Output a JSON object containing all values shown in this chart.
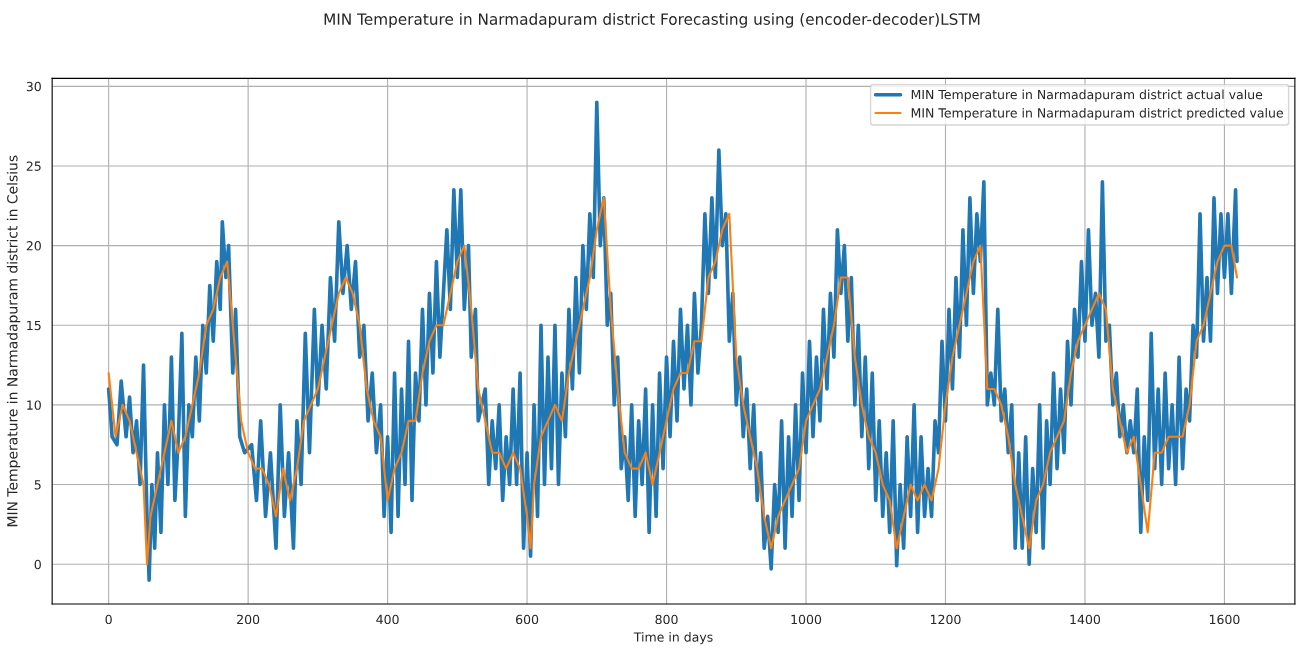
{
  "chart_data": {
    "type": "line",
    "title": "MIN Temperature in Narmadapuram district Forecasting using (encoder-decoder)LSTM",
    "xlabel": "Time in days",
    "ylabel": "MIN Temperature in Narmadapuram district in Celsius",
    "xlim": [
      -81,
      1701
    ],
    "ylim": [
      -2.5,
      30.5
    ],
    "xticks": [
      0,
      200,
      400,
      600,
      800,
      1000,
      1200,
      1400,
      1600
    ],
    "yticks": [
      0,
      5,
      10,
      15,
      20,
      25,
      30
    ],
    "grid": true,
    "legend": "top right",
    "series": [
      {
        "name": "MIN Temperature in Narmadapuram district actual value",
        "color": "#1f77b4",
        "x": [
          0,
          5,
          12,
          18,
          25,
          30,
          35,
          40,
          45,
          50,
          55,
          58,
          62,
          66,
          70,
          75,
          80,
          85,
          90,
          95,
          100,
          105,
          110,
          115,
          120,
          125,
          130,
          135,
          140,
          145,
          150,
          155,
          160,
          163,
          168,
          172,
          178,
          182,
          188,
          195,
          205,
          212,
          218,
          225,
          232,
          240,
          246,
          252,
          258,
          265,
          270,
          276,
          282,
          288,
          295,
          300,
          306,
          312,
          318,
          324,
          330,
          336,
          342,
          348,
          354,
          360,
          366,
          372,
          378,
          384,
          390,
          395,
          400,
          405,
          410,
          415,
          420,
          425,
          430,
          435,
          440,
          445,
          450,
          455,
          460,
          465,
          470,
          475,
          480,
          485,
          490,
          495,
          500,
          505,
          510,
          516,
          520,
          526,
          530,
          540,
          545,
          550,
          555,
          560,
          565,
          570,
          575,
          580,
          585,
          590,
          595,
          600,
          605,
          610,
          615,
          620,
          625,
          630,
          635,
          640,
          645,
          650,
          655,
          660,
          665,
          670,
          675,
          680,
          685,
          690,
          695,
          700,
          705,
          710,
          715,
          720,
          725,
          730,
          735,
          740,
          745,
          750,
          755,
          760,
          765,
          770,
          775,
          780,
          785,
          790,
          795,
          800,
          805,
          810,
          815,
          820,
          825,
          830,
          835,
          840,
          845,
          850,
          855,
          860,
          865,
          870,
          875,
          880,
          885,
          890,
          895,
          900,
          905,
          910,
          915,
          920,
          925,
          930,
          935,
          940,
          945,
          950,
          955,
          960,
          965,
          970,
          975,
          980,
          985,
          990,
          995,
          1000,
          1005,
          1010,
          1015,
          1020,
          1025,
          1030,
          1035,
          1040,
          1045,
          1050,
          1055,
          1060,
          1065,
          1070,
          1075,
          1080,
          1085,
          1090,
          1095,
          1100,
          1105,
          1110,
          1115,
          1120,
          1125,
          1130,
          1135,
          1140,
          1145,
          1150,
          1155,
          1160,
          1165,
          1170,
          1175,
          1180,
          1185,
          1190,
          1195,
          1200,
          1205,
          1210,
          1215,
          1220,
          1225,
          1230,
          1235,
          1240,
          1245,
          1250,
          1255,
          1260,
          1265,
          1270,
          1275,
          1280,
          1285,
          1290,
          1295,
          1300,
          1305,
          1310,
          1315,
          1320,
          1325,
          1330,
          1335,
          1340,
          1345,
          1350,
          1355,
          1360,
          1365,
          1370,
          1375,
          1380,
          1385,
          1390,
          1395,
          1400,
          1405,
          1410,
          1415,
          1420,
          1425,
          1430,
          1435,
          1440,
          1445,
          1450,
          1455,
          1460,
          1465,
          1470,
          1475,
          1480,
          1485,
          1490,
          1495,
          1500,
          1505,
          1510,
          1515,
          1520,
          1525,
          1530,
          1535,
          1540,
          1545,
          1550,
          1555,
          1560,
          1565,
          1570,
          1575,
          1580,
          1585,
          1590,
          1595,
          1600,
          1605,
          1610,
          1616,
          1618
        ],
        "values": [
          11,
          8,
          7.5,
          11.5,
          8,
          10.5,
          7,
          9,
          5,
          12.5,
          3,
          -1,
          5,
          1,
          7,
          2,
          10,
          5,
          13,
          4,
          8,
          14.5,
          3,
          10,
          8,
          13,
          9,
          15,
          12,
          17.5,
          14,
          19,
          16,
          21.5,
          18,
          20,
          12,
          16,
          8,
          7,
          7.5,
          4,
          9,
          3,
          7,
          1,
          10,
          3,
          7,
          1,
          9,
          5,
          14.5,
          7,
          16,
          10,
          15,
          11,
          18,
          14,
          21.5,
          17,
          20,
          16,
          19,
          13,
          15,
          9,
          12,
          7,
          10,
          3,
          8,
          2,
          12,
          3,
          11,
          5,
          14,
          4,
          12,
          9,
          16,
          10,
          17,
          12,
          19,
          13,
          17,
          21,
          16,
          23.5,
          18,
          23.5,
          16,
          20,
          13,
          16,
          9,
          11,
          5,
          9,
          6,
          10,
          4,
          8,
          5,
          11,
          5,
          12,
          1,
          7,
          0.5,
          10,
          3,
          15,
          5,
          13,
          6,
          15,
          5,
          12,
          8,
          16,
          11,
          18,
          12,
          20,
          16,
          22,
          18,
          29,
          20,
          23,
          15,
          17,
          10,
          13,
          6,
          8,
          4,
          10,
          3,
          9,
          5,
          11,
          2,
          10,
          3,
          12,
          6,
          13,
          8,
          14,
          9,
          16,
          11,
          15,
          10,
          17,
          12,
          15,
          22,
          17,
          23,
          18,
          26,
          20,
          22,
          14,
          17,
          10,
          13,
          8,
          11,
          6,
          10,
          4,
          7,
          1,
          3,
          -0.3,
          5,
          2,
          9,
          1,
          8,
          3,
          10,
          4,
          12,
          7,
          14,
          8,
          13,
          9,
          16,
          11,
          17,
          13,
          21,
          17,
          20,
          14,
          18,
          10,
          15,
          8,
          13,
          6,
          12,
          4,
          9,
          3,
          7,
          2,
          9,
          -0.1,
          5,
          1,
          8,
          3,
          10,
          2,
          8,
          3,
          6,
          3,
          9,
          7,
          14,
          9,
          16,
          11,
          18,
          13,
          21,
          15,
          23,
          17,
          22,
          19,
          24,
          10,
          12,
          10,
          16,
          9,
          11,
          7,
          10,
          1,
          7,
          1,
          8,
          0,
          6,
          2,
          10,
          1,
          9,
          5,
          12,
          6,
          11,
          7,
          14,
          10,
          16,
          13,
          19,
          14,
          21,
          15,
          17,
          13,
          24,
          14,
          15,
          10,
          12,
          8,
          10,
          7,
          9,
          7,
          11,
          2,
          8,
          4,
          14.5,
          6,
          11,
          5,
          12,
          6,
          10,
          5,
          13,
          6,
          11,
          9,
          15,
          13,
          22,
          14,
          18,
          14,
          23,
          17,
          22,
          18,
          22,
          17,
          23.5,
          19
        ]
      },
      {
        "name": "MIN Temperature in Narmadapuram district predicted value",
        "color": "#ff7f0e",
        "x": [
          0,
          10,
          20,
          30,
          40,
          50,
          55,
          60,
          70,
          80,
          90,
          100,
          110,
          120,
          130,
          140,
          150,
          160,
          170,
          180,
          190,
          200,
          210,
          220,
          230,
          240,
          250,
          260,
          270,
          280,
          290,
          300,
          310,
          320,
          330,
          340,
          350,
          360,
          370,
          380,
          390,
          400,
          410,
          420,
          430,
          440,
          450,
          460,
          470,
          480,
          490,
          500,
          510,
          520,
          530,
          540,
          550,
          560,
          570,
          580,
          590,
          600,
          605,
          610,
          620,
          630,
          640,
          650,
          660,
          670,
          680,
          690,
          700,
          710,
          720,
          730,
          740,
          750,
          760,
          770,
          780,
          790,
          800,
          810,
          820,
          830,
          840,
          850,
          860,
          870,
          880,
          890,
          900,
          910,
          920,
          930,
          940,
          950,
          960,
          970,
          980,
          990,
          1000,
          1010,
          1020,
          1030,
          1040,
          1050,
          1060,
          1070,
          1080,
          1090,
          1100,
          1110,
          1120,
          1130,
          1140,
          1150,
          1160,
          1170,
          1180,
          1190,
          1200,
          1210,
          1220,
          1230,
          1240,
          1250,
          1260,
          1270,
          1280,
          1290,
          1300,
          1310,
          1320,
          1330,
          1340,
          1350,
          1360,
          1370,
          1380,
          1390,
          1400,
          1410,
          1420,
          1430,
          1440,
          1450,
          1460,
          1470,
          1480,
          1490,
          1500,
          1510,
          1520,
          1530,
          1540,
          1550,
          1560,
          1570,
          1580,
          1590,
          1600,
          1610,
          1618
        ],
        "values": [
          12,
          8,
          10,
          9,
          7,
          5,
          0,
          3,
          5,
          7,
          9,
          7,
          8,
          10,
          12,
          15,
          16,
          18,
          19,
          14,
          9,
          7,
          6,
          6,
          5,
          3,
          6,
          4,
          6,
          9,
          10,
          11,
          13,
          15,
          17,
          18,
          17,
          15,
          11,
          9,
          8,
          4,
          6,
          7,
          9,
          9,
          12,
          14,
          15,
          15,
          17,
          19,
          20,
          16,
          11,
          9,
          7,
          7,
          6,
          7,
          6,
          3,
          1,
          5,
          8,
          9,
          10,
          9,
          12,
          14,
          16,
          18,
          21,
          23,
          16,
          11,
          7,
          6,
          6,
          7,
          5,
          7,
          9,
          11,
          12,
          12,
          14,
          14,
          18,
          19,
          21,
          22,
          13,
          10,
          8,
          6,
          3,
          1,
          3,
          4,
          5,
          6,
          9,
          10,
          11,
          13,
          15,
          18,
          18,
          13,
          10,
          8,
          7,
          5,
          4,
          1,
          3,
          5,
          4,
          5,
          4,
          6,
          10,
          13,
          15,
          17,
          19,
          20,
          11,
          11,
          10,
          8,
          5,
          3,
          1,
          4,
          5,
          7,
          8,
          9,
          12,
          14,
          15,
          16,
          17,
          16,
          11,
          9,
          7,
          8,
          5,
          2,
          7,
          7,
          8,
          8,
          8,
          10,
          14,
          15,
          17,
          19,
          20,
          20,
          18
        ]
      }
    ]
  }
}
